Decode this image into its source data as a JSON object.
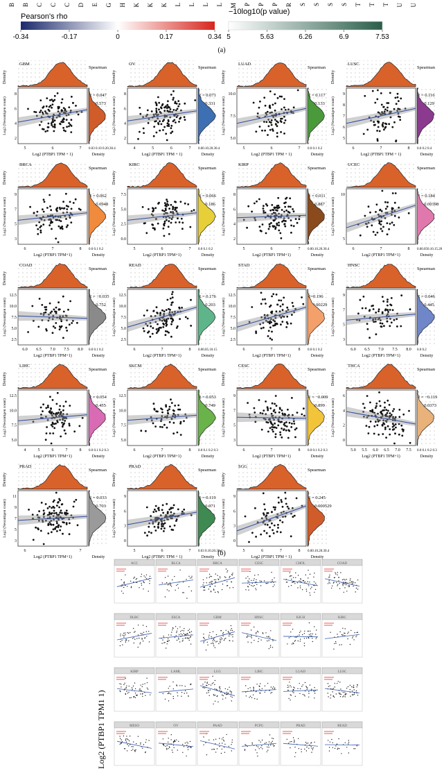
{
  "legend": {
    "rho_title": "Pearson's rho",
    "rho_ticks": [
      "-0.34",
      "-0.17",
      "0",
      "0.17",
      "0.34"
    ],
    "p_title": "−10log10(p value)",
    "p_ticks": [
      "5",
      "5.63",
      "6.26",
      "6.9",
      "7.53"
    ],
    "rho_colors": [
      "#1b2a6b",
      "#ffffff",
      "#d7261e"
    ],
    "p_colors": [
      "#ffffff",
      "#2a5e4a"
    ],
    "top_letters": [
      "B",
      "B",
      "C",
      "C",
      "C",
      "D",
      "E",
      "G",
      "H",
      "K",
      "K",
      "K",
      "L",
      "L",
      "L",
      "L",
      "M",
      "P",
      "P",
      "P",
      "R",
      "S",
      "S",
      "S",
      "S",
      "T",
      "T",
      "T",
      "U",
      "U"
    ]
  },
  "panel_labels": {
    "a": "(a)",
    "b": "(b)"
  },
  "facets": [
    {
      "name": "GBM",
      "r": "R = 0.047",
      "p": "P = 0.573",
      "fill": "#d05c2a",
      "xlab": "Log2 (PTBP1 TPM + 1)",
      "xticks": [
        "5",
        "6",
        "7"
      ],
      "yticks": [
        "2",
        "4",
        "6",
        "8"
      ],
      "dticks": "0.03 0.10 0.20.30.4",
      "slope": 0.25
    },
    {
      "name": "OV",
      "r": "R = 0.071",
      "p": "P = 0.331",
      "fill": "#3d6fb3",
      "xlab": "Log2 (PTBP1 TPM + 1)",
      "xticks": [
        "4",
        "5",
        "6",
        "7"
      ],
      "yticks": [
        "2",
        "4",
        "6",
        "8"
      ],
      "dticks": "0.00.10.20.30.4",
      "slope": 0.2
    },
    {
      "name": "LUAD",
      "r": "R = 0.117",
      "p": "P = 0.133",
      "fill": "#4a9a3c",
      "xlab": "Log2 (PTBP1 TPM + 1)",
      "xticks": [
        "5",
        "6",
        "7"
      ],
      "yticks": [
        "5.0",
        "7.5",
        "10.0"
      ],
      "dticks": "0.0 0.1 0.2",
      "slope": 0.3
    },
    {
      "name": "LUSC",
      "r": "R = 0.116",
      "p": "P = 0.129",
      "fill": "#8b3a8f",
      "xlab": "Log2 (PTBP1 TPM + 1)",
      "xticks": [
        "6",
        "7",
        "8"
      ],
      "yticks": [
        "5",
        "6",
        "7",
        "8",
        "9"
      ],
      "dticks": "0.0 0.2 0.4",
      "slope": 0.3
    },
    {
      "name": "BRCA",
      "r": "R = 0.062",
      "p": "P = 0.0948",
      "fill": "#f08a3c",
      "xlab": "Log2 (PTBP1 TPM+1)",
      "xticks": [
        "6",
        "7",
        "8"
      ],
      "yticks": [
        "3",
        "5",
        "7",
        "9"
      ],
      "dticks": "0.0 0.1 0.2",
      "slope": 0.15
    },
    {
      "name": "KIRC",
      "r": "R = 0.066",
      "p": "P = 0.186",
      "fill": "#e7cf3a",
      "xlab": "Log2 (PTBP1 TPM+1)",
      "xticks": [
        "5",
        "6",
        "7"
      ],
      "yticks": [
        "0.0",
        "2.5",
        "5.0",
        "7.5"
      ],
      "dticks": "0.0 0.1 0.2",
      "slope": 0.15
    },
    {
      "name": "KIRP",
      "r": "R = 0.011",
      "p": "P = 0.887",
      "fill": "#8a4a1c",
      "xlab": "Log2 (PTBP1 TPM+1)",
      "xticks": [
        "5",
        "6",
        "7"
      ],
      "yticks": [
        "2",
        "4",
        "6",
        "8"
      ],
      "dticks": "0.00.10.20.30.4",
      "slope": 0.05
    },
    {
      "name": "UCEC",
      "r": "R = 0.184",
      "p": "P = 0.00398",
      "fill": "#e078ae",
      "xlab": "Log2 (PTBP1 TPM+1)",
      "xticks": [
        "6",
        "7",
        "8"
      ],
      "yticks": [
        "5",
        "10"
      ],
      "dticks": "0.00.050.10.15.20",
      "slope": 0.45
    },
    {
      "name": "COAD",
      "r": "R = −0.035",
      "p": "P = 0.752",
      "fill": "#8a8a8a",
      "xlab": "Log2 (PTBP1 TPM+1)",
      "xticks": [
        "6.0",
        "6.5",
        "7.0",
        "7.5",
        "8.0"
      ],
      "yticks": [
        "2.5",
        "5.0",
        "7.5",
        "10.0",
        "12.5"
      ],
      "dticks": "0.0  0.1  0.2",
      "slope": -0.05
    },
    {
      "name": "READ",
      "r": "R = 0.176",
      "p": "P = 0.203",
      "fill": "#5fb58a",
      "xlab": "Log2 (PTBP1 TPM+1)",
      "xticks": [
        "6",
        "7",
        "8"
      ],
      "yticks": [
        "2.5",
        "5.0",
        "7.5",
        "10.0",
        "12.5"
      ],
      "dticks": "0.00.05.10.15",
      "slope": 0.4
    },
    {
      "name": "STAD",
      "r": "R=0.196",
      "p": "P=0.00229",
      "fill": "#f4a06a",
      "xlab": "Log2 (PTBP1 TPM+1)",
      "xticks": [
        "6",
        "7",
        "8"
      ],
      "yticks": [
        "2.5",
        "5.0",
        "7.5",
        "10.0",
        "12.5"
      ],
      "dticks": "0.0 0.1 0.2",
      "slope": 0.4
    },
    {
      "name": "HNSC",
      "r": "R = 0.046",
      "p": "P = 0.445",
      "fill": "#6f86c8",
      "xlab": "Log2 (PTBP1 TPM+1)",
      "xticks": [
        "6.0",
        "6.5",
        "7.0",
        "7.5",
        "8.0"
      ],
      "yticks": [
        "3",
        "5",
        "7",
        "9"
      ],
      "dticks": "0.0  0.2",
      "slope": 0.12
    },
    {
      "name": "LIHC",
      "r": "R = 0.054",
      "p": "P = 0.455",
      "fill": "#d96bb5",
      "xlab": "Log2 (PTBP1 TPM+1)",
      "xticks": [
        "4",
        "5",
        "6",
        "7",
        "8"
      ],
      "yticks": [
        "5.0",
        "7.5",
        "10.0",
        "12.5"
      ],
      "dticks": "0.0 0.1 0.2 0.3",
      "slope": 0.12
    },
    {
      "name": "SKCM",
      "r": "R = 0.053",
      "p": "P = 0.749",
      "fill": "#6ab24a",
      "xlab": "Log2 (PTBP1 TPM+1)",
      "xticks": [
        "6",
        "7",
        "8"
      ],
      "yticks": [
        "5.0",
        "7.5",
        "10.0",
        "12.5"
      ],
      "dticks": "0.0 0.1 0.2 0.3",
      "slope": 0.1
    },
    {
      "name": "CESC",
      "r": "R = −0.009",
      "p": "P = 0.899",
      "fill": "#f2c43a",
      "xlab": "Log2 (PTBP1 TPM+1)",
      "xticks": [
        "6",
        "7",
        "8"
      ],
      "yticks": [
        "3",
        "5",
        "7",
        "9"
      ],
      "dticks": "0.0 0.1 0.2 0.3",
      "slope": -0.02
    },
    {
      "name": "THCA",
      "r": "R = −0.119",
      "p": "P = 0.0373",
      "fill": "#e8b27a",
      "xlab": "Log2 (PTBP1 TPM+1)",
      "xticks": [
        "5.0",
        "5.5",
        "6.0",
        "6.5",
        "7.0",
        "7.5"
      ],
      "yticks": [
        "0",
        "2",
        "4",
        "6"
      ],
      "dticks": "0.0 0.1 0.2 0.3",
      "slope": -0.25
    },
    {
      "name": "PRAD",
      "r": "R = 0.033",
      "p": "P = 0.703",
      "fill": "#9a9a9a",
      "xlab": "Log2 (PTBP1 TPM+1)",
      "xticks": [
        "6",
        "7"
      ],
      "yticks": [
        "3",
        "5",
        "7",
        "9",
        "11"
      ],
      "dticks": "",
      "slope": 0.08
    },
    {
      "name": "PRAD",
      "r": "R = 0.119",
      "p": "P = 0.071",
      "fill": "#3f8a52",
      "xlab": "Log2 (PTBP1 TPM + 1)",
      "xticks": [
        "5",
        "6",
        "7"
      ],
      "yticks": [
        "0",
        "3",
        "6",
        "9"
      ],
      "dticks": "0.03 0.10.20.30.4",
      "slope": 0.25
    },
    {
      "name": "SGG",
      "r": "R = 0.245",
      "p": "P = 0.000529",
      "fill": "#d05c2a",
      "xlab": "Log2 (PTBP1 TPM + 1)",
      "xticks": [
        "5",
        "6",
        "7",
        "8"
      ],
      "yticks": [
        "0",
        "3",
        "6",
        "9"
      ],
      "dticks": "0.00.10.20.30.4",
      "slope": 0.5
    }
  ],
  "common": {
    "corr_method": "Spearman",
    "ylab": "Log2 (Neoantigen count)",
    "density_label": "Density"
  },
  "bottom": {
    "ylabel": "Log2 (PTBP1 TPM1 1)",
    "facet_titles": [
      "ACC",
      "BLCA",
      "BRCA",
      "CESC",
      "CHOL",
      "COAD",
      "DLBC",
      "ESCA",
      "GBM",
      "HNSC",
      "KICH",
      "KIRC",
      "KIRP",
      "LAML",
      "LGG",
      "LIHC",
      "LUAD",
      "LUSC",
      "MESO",
      "OV",
      "PAAD",
      "PCPG",
      "PRAD",
      "READ"
    ]
  }
}
